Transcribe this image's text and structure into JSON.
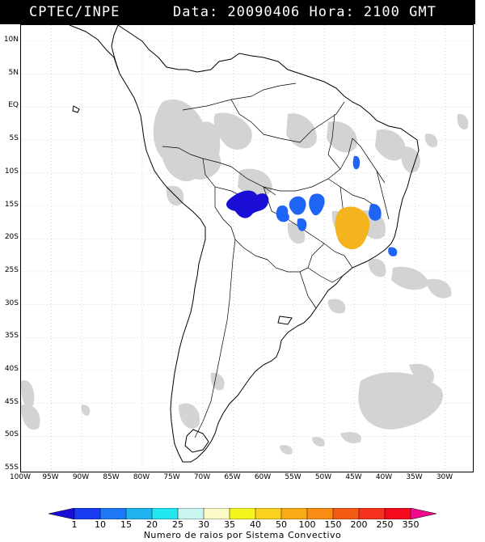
{
  "header": {
    "source": "CPTEC/INPE",
    "datetime": "Data: 20090406 Hora: 2100 GMT"
  },
  "map": {
    "lat_ticks": [
      "10N",
      "5N",
      "EQ",
      "5S",
      "10S",
      "15S",
      "20S",
      "25S",
      "30S",
      "35S",
      "40S",
      "45S",
      "50S",
      "55S"
    ],
    "lon_ticks": [
      "100W",
      "95W",
      "90W",
      "85W",
      "80W",
      "75W",
      "70W",
      "65W",
      "60W",
      "55W",
      "50W",
      "45W",
      "40W",
      "35W",
      "30W"
    ],
    "cloud_color": "#c8c8c8",
    "coast_color": "#000000"
  },
  "legend": {
    "caption": "Numero de raios por Sistema Convectivo",
    "ticks": [
      "1",
      "10",
      "15",
      "20",
      "25",
      "30",
      "35",
      "40",
      "50",
      "100",
      "150",
      "200",
      "250",
      "350"
    ],
    "colors": [
      "#1a0dd6",
      "#1a3cf0",
      "#1e78f5",
      "#1fb4f0",
      "#22e6f0",
      "#c8f5f0",
      "#fafac8",
      "#f5f51e",
      "#fad21e",
      "#faaa14",
      "#fa8c14",
      "#f55a14",
      "#f5321e",
      "#f50a1e",
      "#f00a8c"
    ]
  },
  "storms": [
    {
      "lightning_class": "1-10",
      "color": "#1a0dd6"
    },
    {
      "lightning_class": "10-15",
      "color": "#1e64f5"
    },
    {
      "lightning_class": "40-50",
      "color": "#f5b41e"
    }
  ]
}
